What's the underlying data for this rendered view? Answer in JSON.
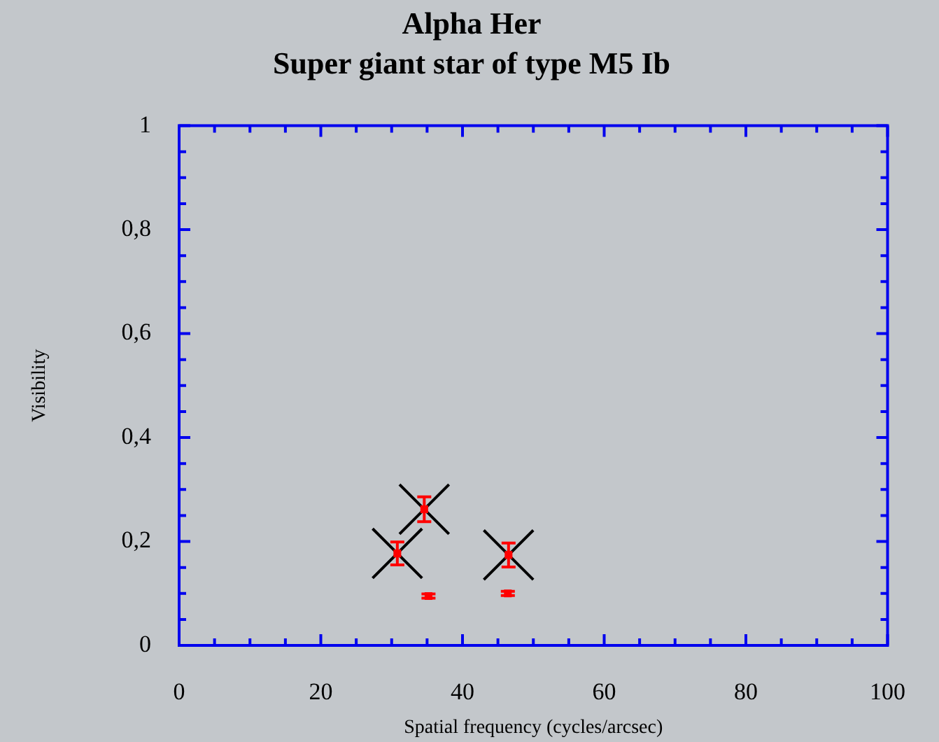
{
  "chart_data": {
    "type": "scatter",
    "title": "Alpha Her",
    "subtitle": "Super giant star of type M5 Ib",
    "xlabel": "Spatial frequency (cycles/arcsec)",
    "ylabel": "Visibility",
    "series": [
      {
        "color": "#ff0000",
        "x": [
          30.8,
          34.6,
          46.5,
          35.2,
          46.4
        ],
        "values": [
          0.177,
          0.262,
          0.174,
          0.095,
          0.1
        ],
        "errors": [
          0.022,
          0.024,
          0.023,
          0.004,
          0.004
        ]
      },
      {
        "color": "#000000",
        "marker": "cross",
        "x": [
          30.8,
          34.6,
          46.5
        ],
        "values": [
          0.177,
          0.262,
          0.174
        ]
      }
    ],
    "xlim": [
      0,
      100
    ],
    "ylim": [
      0,
      1
    ],
    "xticks": [
      0,
      {
        "value": 5,
        "label": null
      },
      {
        "value": 10,
        "label": null
      },
      {
        "value": 15,
        "label": null
      },
      20,
      {
        "value": 25,
        "label": null
      },
      {
        "value": 30,
        "label": null
      },
      {
        "value": 35,
        "label": null
      },
      40,
      {
        "value": 45,
        "label": null
      },
      {
        "value": 50,
        "label": null
      },
      {
        "value": 55,
        "label": null
      },
      60,
      {
        "value": 65,
        "label": null
      },
      {
        "value": 70,
        "label": null
      },
      {
        "value": 75,
        "label": null
      },
      80,
      {
        "value": 85,
        "label": null
      },
      {
        "value": 90,
        "label": null
      },
      {
        "value": 95,
        "label": null
      },
      100
    ],
    "yticks": [
      0,
      {
        "value": 0.05,
        "label": null
      },
      {
        "value": 0.1,
        "label": null
      },
      {
        "value": 0.15,
        "label": null
      },
      {
        "value": 0.2,
        "label": "0,2"
      },
      {
        "value": 0.25,
        "label": null
      },
      {
        "value": 0.3,
        "label": null
      },
      {
        "value": 0.35,
        "label": null
      },
      {
        "value": 0.4,
        "label": "0,4"
      },
      {
        "value": 0.45,
        "label": null
      },
      {
        "value": 0.5,
        "label": null
      },
      {
        "value": 0.55,
        "label": null
      },
      {
        "value": 0.6,
        "label": "0,6"
      },
      {
        "value": 0.65,
        "label": null
      },
      {
        "value": 0.7,
        "label": null
      },
      {
        "value": 0.75,
        "label": null
      },
      {
        "value": 0.8,
        "label": "0,8"
      },
      {
        "value": 0.85,
        "label": null
      },
      {
        "value": 0.9,
        "label": null
      },
      {
        "value": 0.95,
        "label": null
      },
      1
    ],
    "grid": false,
    "legend": false
  }
}
